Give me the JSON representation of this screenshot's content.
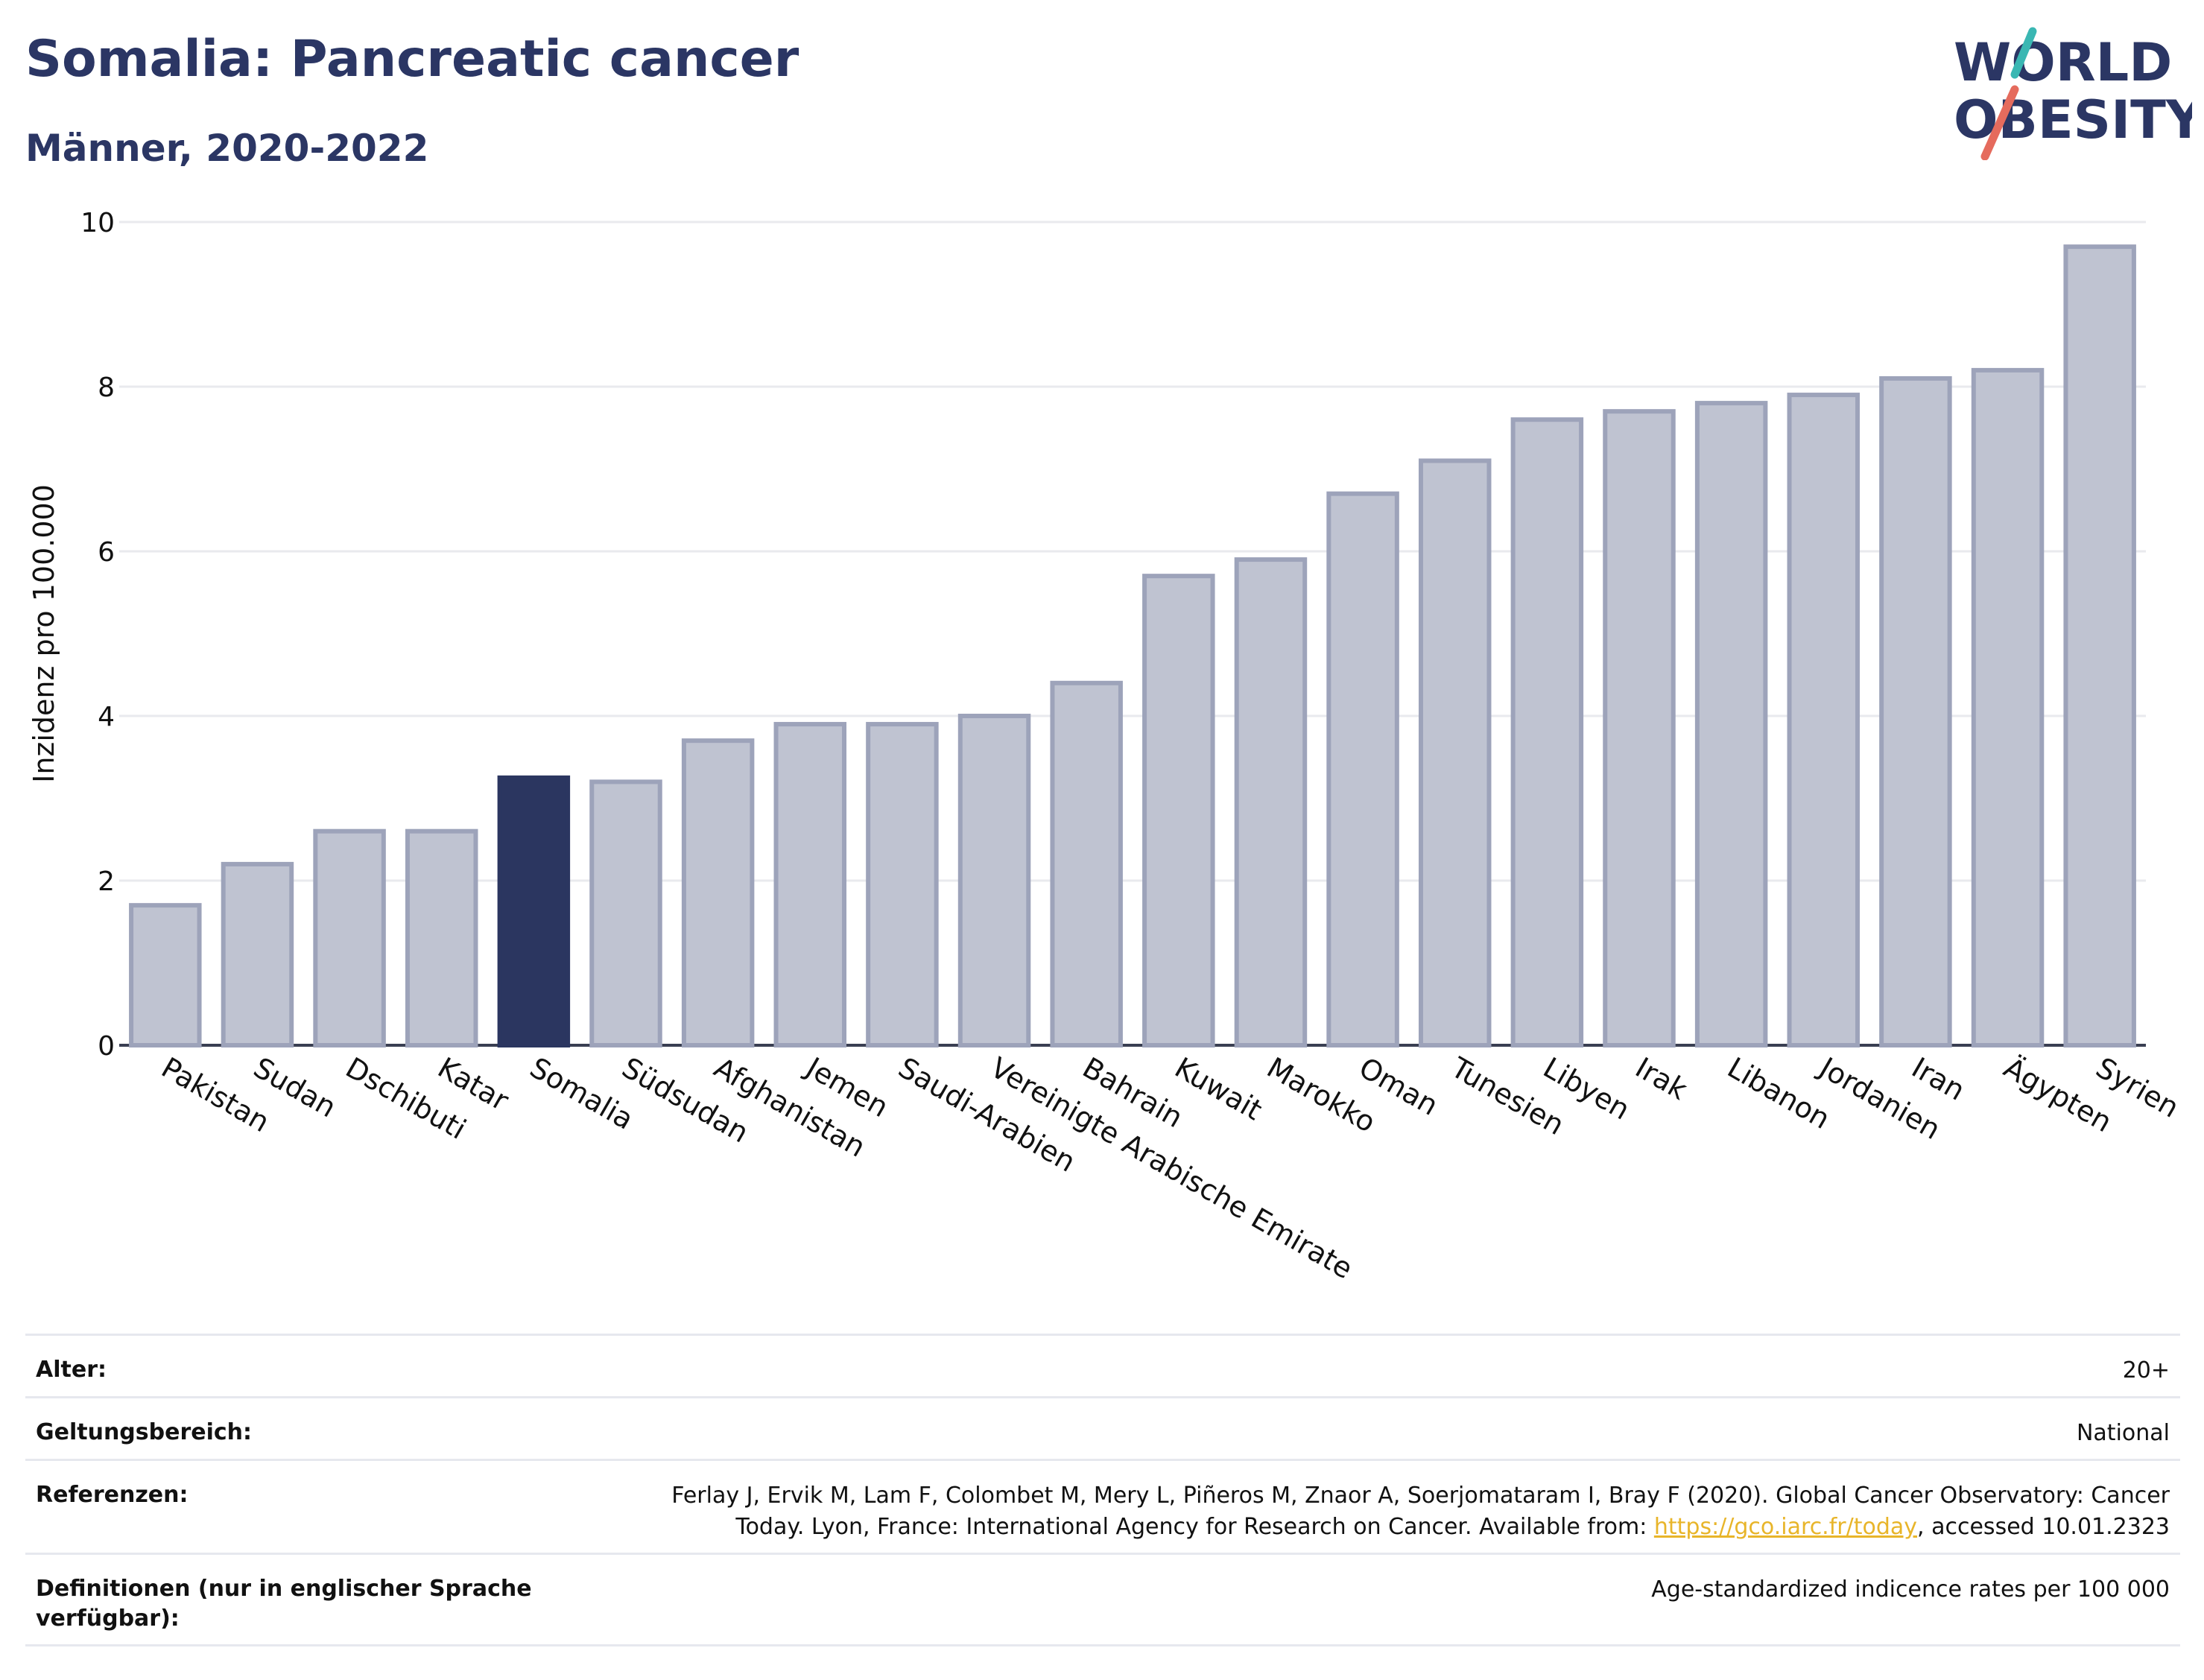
{
  "header": {
    "title": "Somalia: Pancreatic cancer",
    "subtitle": "Männer, 2020-2022"
  },
  "logo": {
    "line1": "WORLD",
    "line2": "OBESITY",
    "icon": "world-obesity-logo",
    "accent_teal": "#3ab7b3",
    "accent_red": "#e56b5d"
  },
  "colors": {
    "bar": "#bfc3d1",
    "bar_stroke": "#9da3ba",
    "highlight": "#2b3660",
    "grid": "#e9eaee",
    "text": "#111111"
  },
  "chart_data": {
    "type": "bar",
    "ylabel": "Inzidenz pro 100.000",
    "ylim": [
      0,
      10
    ],
    "yticks": [
      0,
      2,
      4,
      6,
      8,
      10
    ],
    "grid": true,
    "highlight": "Somalia",
    "categories": [
      "Pakistan",
      "Sudan",
      "Dschibuti",
      "Katar",
      "Somalia",
      "Südsudan",
      "Afghanistan",
      "Jemen",
      "Saudi-Arabien",
      "Vereinigte Arabische Emirate",
      "Bahrain",
      "Kuwait",
      "Marokko",
      "Oman",
      "Tunesien",
      "Libyen",
      "Irak",
      "Libanon",
      "Jordanien",
      "Iran",
      "Ägypten",
      "Syrien"
    ],
    "values": [
      1.7,
      2.2,
      2.6,
      2.6,
      3.25,
      3.2,
      3.7,
      3.9,
      3.9,
      4.0,
      4.4,
      5.7,
      5.9,
      6.7,
      7.1,
      7.6,
      7.7,
      7.8,
      7.9,
      8.1,
      8.2,
      9.7
    ]
  },
  "meta": {
    "age_label": "Alter:",
    "age_value": "20+",
    "scope_label": "Geltungsbereich:",
    "scope_value": "National",
    "ref_label": "Referenzen:",
    "ref_text_1": "Ferlay J, Ervik M, Lam F, Colombet M, Mery L, Piñeros M, Znaor A, Soerjomataram I, Bray F (2020). Global Cancer Observatory: Cancer",
    "ref_text_2": "Today. Lyon, France: International Agency for Research on Cancer. Available from: ",
    "ref_link": "https://gco.iarc.fr/today",
    "ref_text_3": ", accessed 10.01.2323",
    "def_label": "Definitionen (nur in englischer Sprache verfügbar):",
    "def_value": "Age-standardized indicence rates per 100 000"
  }
}
